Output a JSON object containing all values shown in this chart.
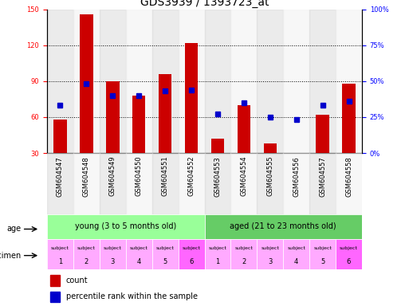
{
  "title": "GDS3939 / 1393723_at",
  "categories": [
    "GSM604547",
    "GSM604548",
    "GSM604549",
    "GSM604550",
    "GSM604551",
    "GSM604552",
    "GSM604553",
    "GSM604554",
    "GSM604555",
    "GSM604556",
    "GSM604557",
    "GSM604558"
  ],
  "counts": [
    58,
    146,
    90,
    78,
    96,
    122,
    42,
    70,
    38,
    30,
    62,
    88
  ],
  "percentiles": [
    33,
    48,
    40,
    40,
    43,
    44,
    27,
    35,
    25,
    23,
    33,
    36
  ],
  "ylim_left": [
    30,
    150
  ],
  "ylim_right": [
    0,
    100
  ],
  "yticks_left": [
    30,
    60,
    90,
    120,
    150
  ],
  "yticks_right": [
    0,
    25,
    50,
    75,
    100
  ],
  "ytick_labels_right": [
    "0%",
    "25%",
    "50%",
    "75%",
    "100%"
  ],
  "bar_color": "#cc0000",
  "dot_color": "#0000cc",
  "bar_width": 0.5,
  "age_young_label": "young (3 to 5 months old)",
  "age_aged_label": "aged (21 to 23 months old)",
  "age_young_color": "#99ff99",
  "age_aged_color": "#66cc66",
  "light_pink": "#ffaaff",
  "dark_pink": "#ff66ff",
  "age_label": "age",
  "specimen_label": "specimen",
  "legend_count": "count",
  "legend_percentile": "percentile rank within the sample",
  "title_fontsize": 10,
  "tick_fontsize": 6,
  "label_fontsize": 8
}
